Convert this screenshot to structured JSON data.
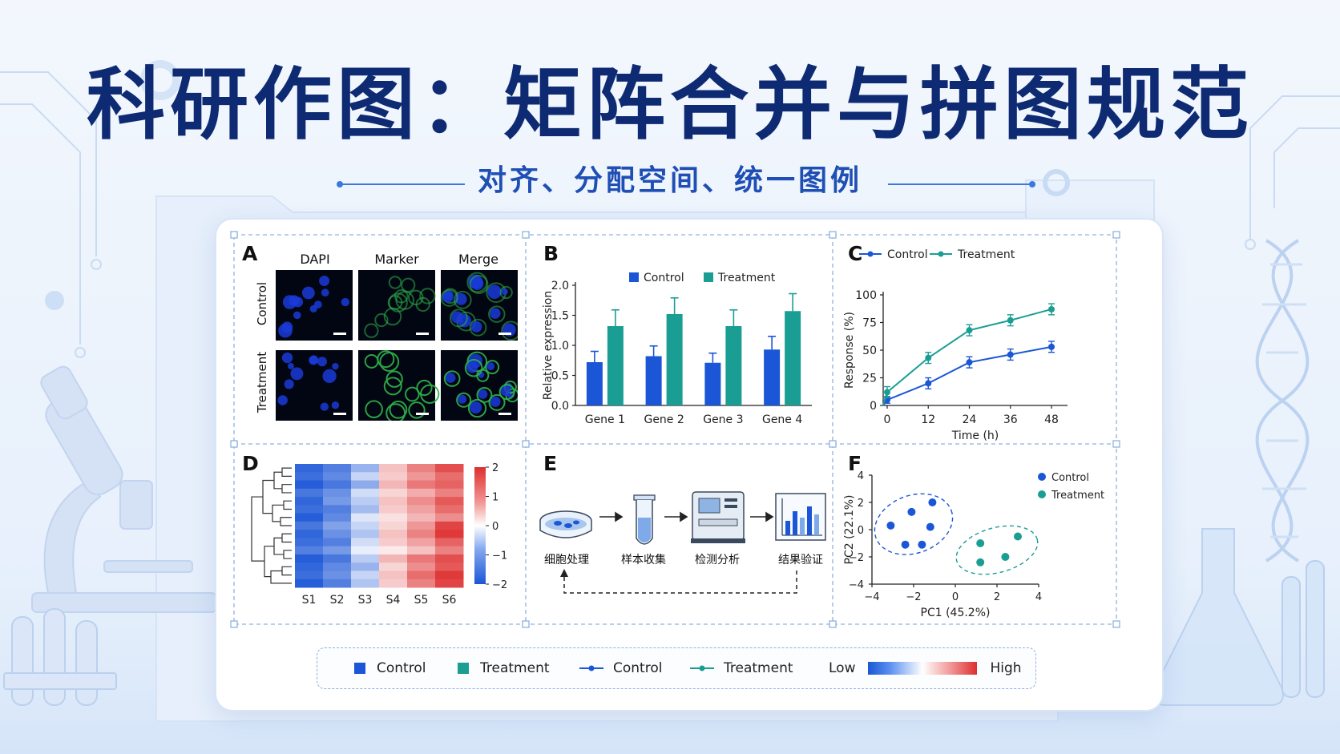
{
  "header": {
    "title": "科研作图：矩阵合并与拼图规范",
    "subtitle": "对齐、分配空间、统一图例"
  },
  "colors": {
    "control": "#1a56d6",
    "treatment": "#1a9e94",
    "title": "#0d2a73",
    "accent": "#2f6fe0"
  },
  "panels": {
    "A": {
      "label": "A",
      "columns": [
        "DAPI",
        "Marker",
        "Merge"
      ],
      "rows": [
        "Control",
        "Treatment"
      ]
    },
    "B": {
      "label": "B"
    },
    "C": {
      "label": "C"
    },
    "D": {
      "label": "D"
    },
    "E": {
      "label": "E",
      "steps": [
        "细胞处理",
        "样本收集",
        "检测分析",
        "结果验证"
      ]
    },
    "F": {
      "label": "F"
    }
  },
  "chart_data": [
    {
      "panel": "B",
      "type": "bar",
      "categories": [
        "Gene 1",
        "Gene 2",
        "Gene 3",
        "Gene 4"
      ],
      "series": [
        {
          "name": "Control",
          "values": [
            0.72,
            0.82,
            0.71,
            0.93
          ],
          "errors": [
            0.18,
            0.17,
            0.16,
            0.22
          ]
        },
        {
          "name": "Treatment",
          "values": [
            1.32,
            1.52,
            1.32,
            1.57
          ],
          "errors": [
            0.27,
            0.27,
            0.27,
            0.29
          ]
        }
      ],
      "ylabel": "Relative expression",
      "ylim": [
        0,
        2.0
      ],
      "yticks": [
        "0.0",
        "0.5",
        "1.0",
        "1.5",
        "2.0"
      ],
      "legend": "top"
    },
    {
      "panel": "C",
      "type": "line",
      "x": [
        0,
        12,
        24,
        36,
        48
      ],
      "series": [
        {
          "name": "Control",
          "values": [
            5,
            20,
            39,
            46,
            53
          ],
          "errors": [
            3,
            5,
            5,
            5,
            5
          ]
        },
        {
          "name": "Treatment",
          "values": [
            12,
            43,
            68,
            77,
            87
          ],
          "errors": [
            5,
            5,
            5,
            5,
            5
          ]
        }
      ],
      "xlabel": "Time (h)",
      "ylabel": "Response (%)",
      "xticks": [
        "0",
        "12",
        "24",
        "36",
        "48"
      ],
      "yticks": [
        "0",
        "25",
        "50",
        "75",
        "100"
      ],
      "ylim": [
        0,
        100
      ],
      "legend": "top"
    },
    {
      "panel": "D",
      "type": "heatmap",
      "columns": [
        "S1",
        "S2",
        "S3",
        "S4",
        "S5",
        "S6"
      ],
      "values": [
        [
          -1.8,
          -1.5,
          -0.9,
          0.6,
          1.2,
          1.7
        ],
        [
          -1.7,
          -1.4,
          -0.5,
          0.5,
          1.0,
          1.4
        ],
        [
          -1.9,
          -1.6,
          -1.0,
          0.7,
          1.3,
          1.5
        ],
        [
          -1.6,
          -1.3,
          -0.4,
          0.4,
          0.8,
          1.2
        ],
        [
          -1.8,
          -1.2,
          -0.6,
          0.6,
          1.1,
          1.6
        ],
        [
          -1.7,
          -1.5,
          -0.8,
          0.5,
          0.9,
          1.4
        ],
        [
          -1.9,
          -1.4,
          -0.3,
          0.3,
          0.7,
          1.1
        ],
        [
          -1.6,
          -1.1,
          -0.5,
          0.4,
          1.0,
          1.8
        ],
        [
          -1.8,
          -1.3,
          -0.7,
          0.6,
          1.2,
          1.9
        ],
        [
          -1.7,
          -1.5,
          -0.4,
          0.5,
          0.9,
          1.5
        ],
        [
          -1.5,
          -1.2,
          -0.2,
          0.2,
          0.6,
          1.2
        ],
        [
          -1.9,
          -1.6,
          -0.6,
          0.7,
          1.3,
          1.7
        ],
        [
          -1.8,
          -1.4,
          -0.9,
          0.4,
          1.1,
          1.6
        ],
        [
          -1.7,
          -1.3,
          -0.5,
          0.6,
          1.4,
          1.9
        ],
        [
          -1.9,
          -1.5,
          -0.7,
          0.5,
          1.2,
          1.8
        ]
      ],
      "scale_ticks": [
        "2",
        "1",
        "0",
        "−1",
        "−2"
      ],
      "vmin": -2,
      "vmax": 2
    },
    {
      "panel": "F",
      "type": "scatter",
      "series": [
        {
          "name": "Control",
          "points": [
            [
              -2.1,
              1.3
            ],
            [
              -1.1,
              2.0
            ],
            [
              -3.1,
              0.3
            ],
            [
              -2.4,
              -1.1
            ],
            [
              -1.6,
              -1.1
            ],
            [
              -1.2,
              0.2
            ]
          ]
        },
        {
          "name": "Treatment",
          "points": [
            [
              1.2,
              -1.0
            ],
            [
              3.0,
              -0.5
            ],
            [
              1.2,
              -2.4
            ],
            [
              2.4,
              -2.0
            ]
          ]
        }
      ],
      "xlabel": "PC1 (45.2%)",
      "ylabel": "PC2 (22.1%)",
      "xticks": [
        "−4",
        "−2",
        "0",
        "2",
        "4"
      ],
      "yticks": [
        "−4",
        "−2",
        "0",
        "2",
        "4"
      ],
      "xlim": [
        -4,
        4
      ],
      "ylim": [
        -4,
        4
      ],
      "legend": "top-right"
    }
  ],
  "shared_legend": {
    "bar_control": "Control",
    "bar_treatment": "Treatment",
    "line_control": "Control",
    "line_treatment": "Treatment",
    "low": "Low",
    "high": "High"
  }
}
